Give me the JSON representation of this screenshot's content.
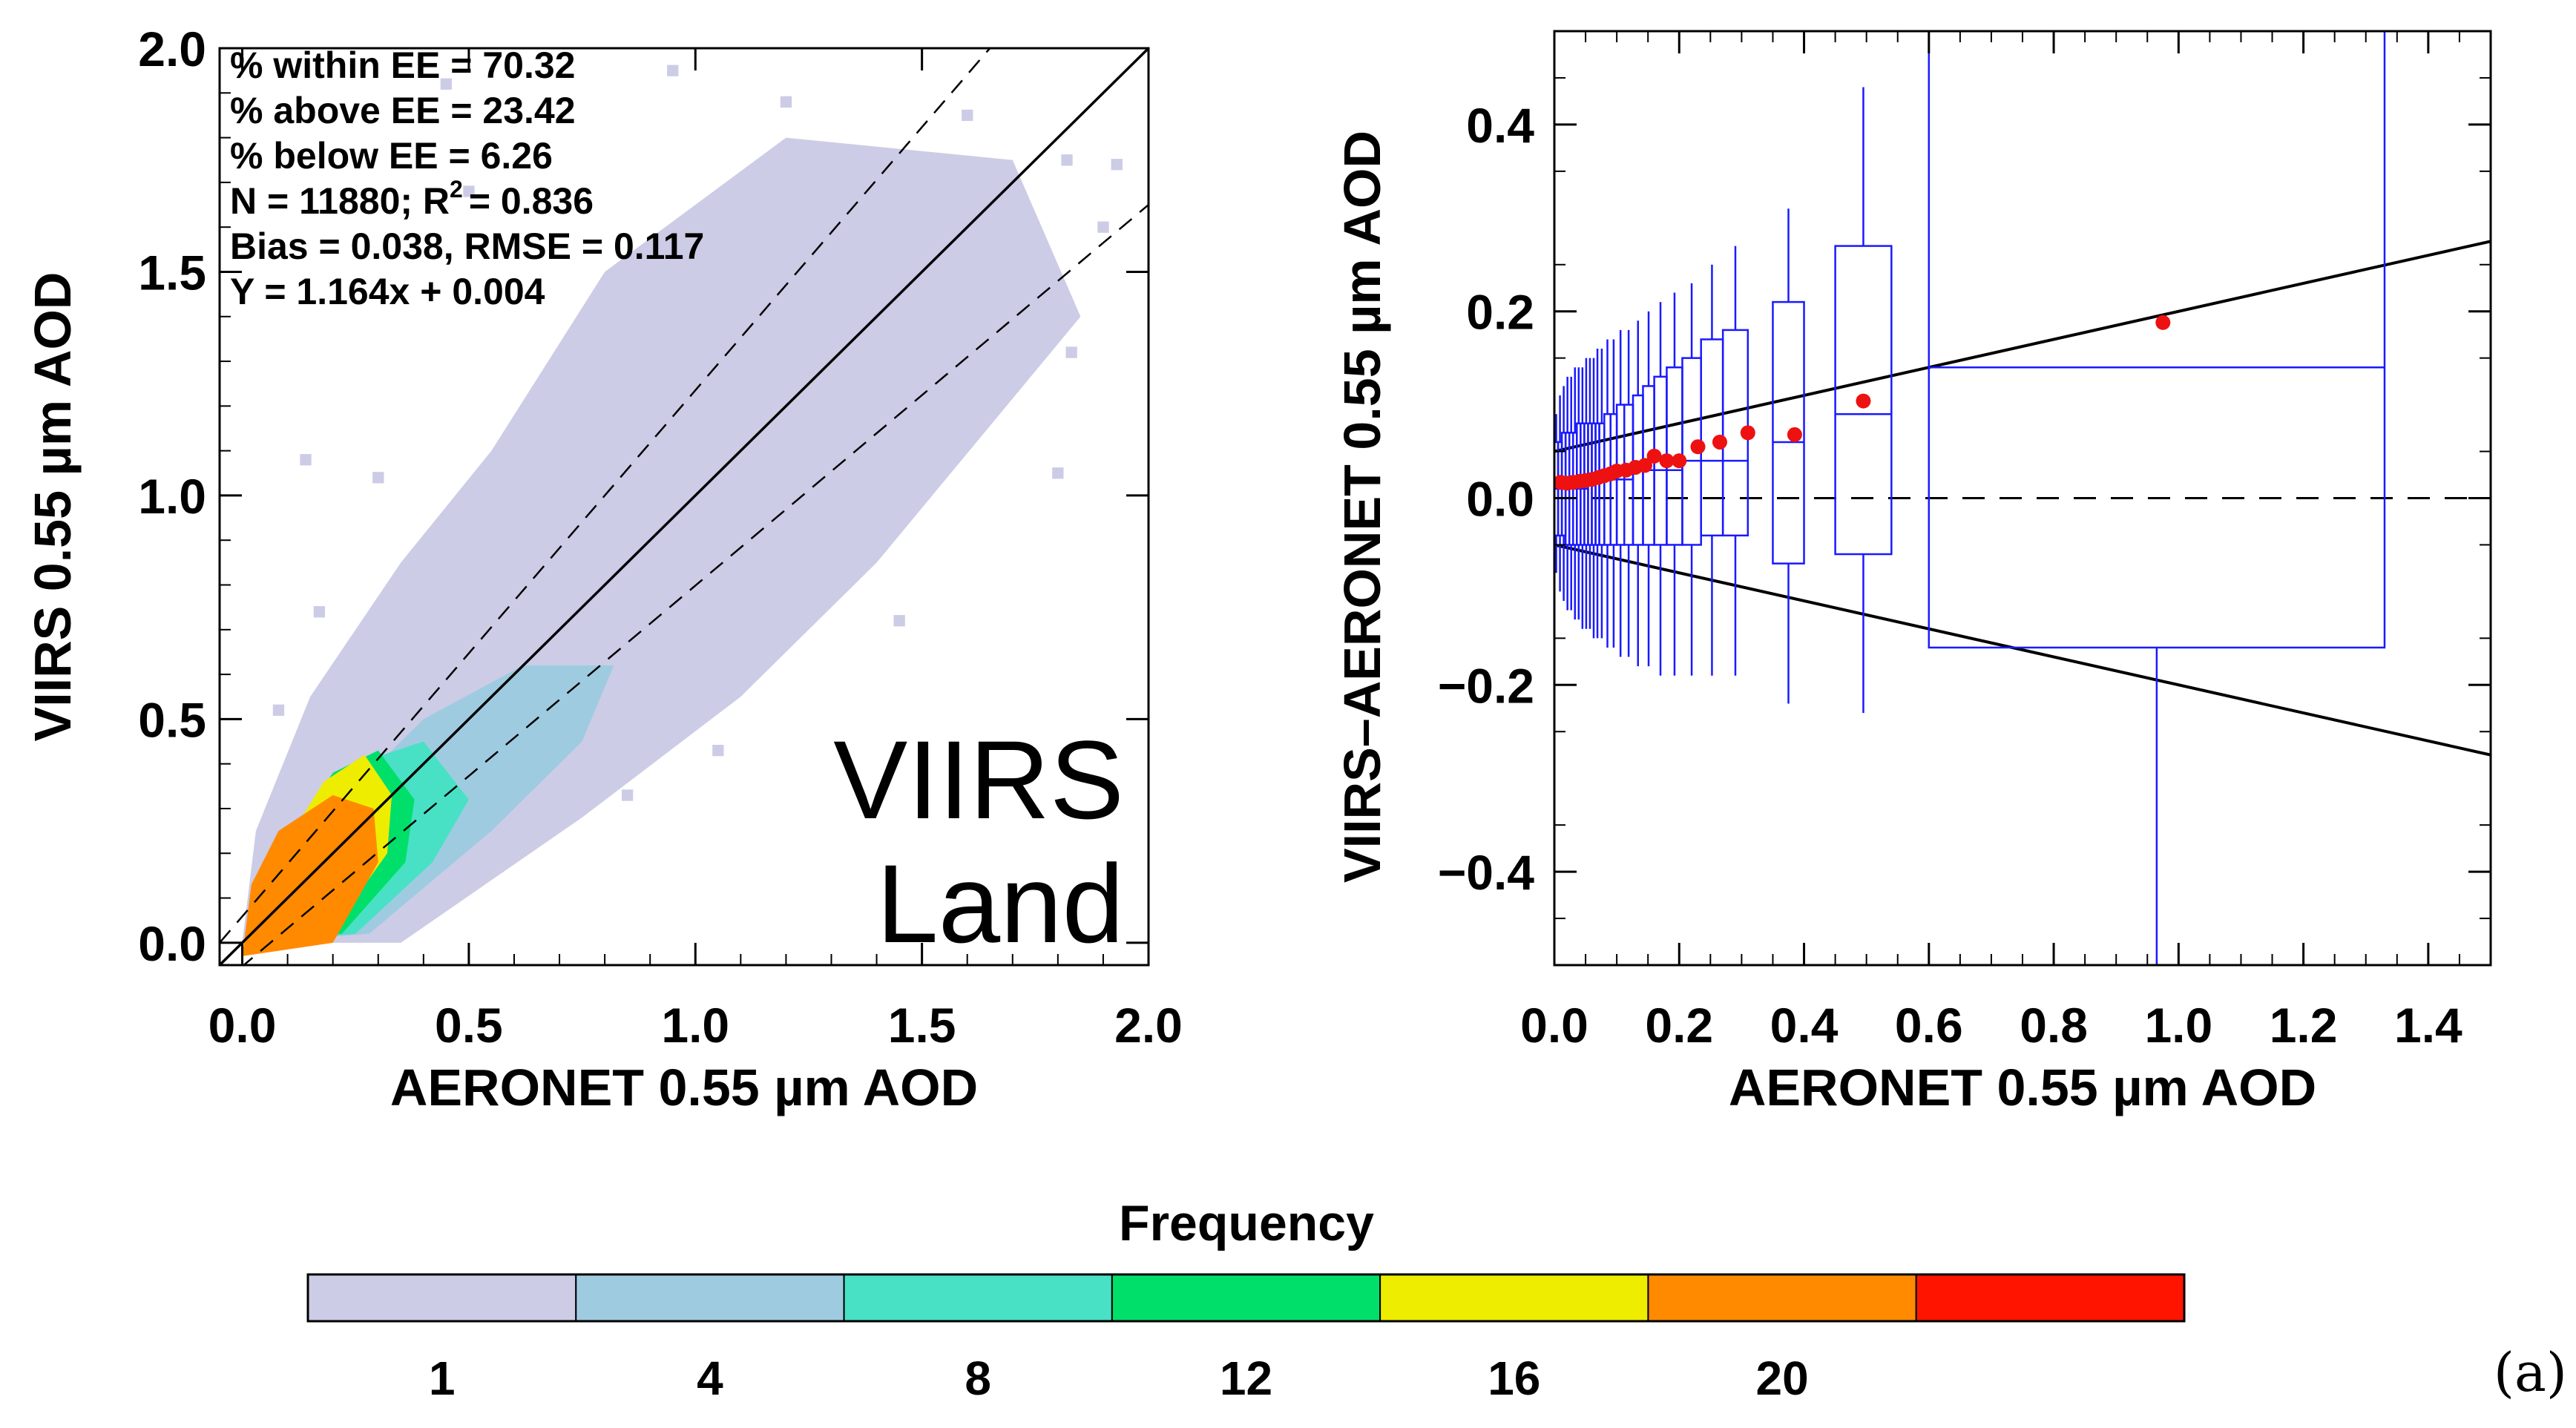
{
  "chart_data": [
    {
      "type": "heatmap",
      "xlabel": "AERONET 0.55 µm AOD",
      "ylabel": "VIIRS 0.55 µm AOD",
      "xlim": [
        -0.05,
        2.0
      ],
      "ylim": [
        -0.05,
        2.0
      ],
      "xticks": [
        "0.0",
        "0.5",
        "1.0",
        "1.5",
        "2.0"
      ],
      "yticks": [
        "0.0",
        "0.5",
        "1.0",
        "1.5",
        "2.0"
      ],
      "stats": [
        "% within EE =  70.32",
        "% above EE =  23.42",
        "% below EE =   6.26",
        "N =  11880; R",
        "Bias =  0.038, RMSE =  0.117",
        "Y  =  1.164x +  0.004"
      ],
      "stats_r2_tail": "=  0.836",
      "stats_r2_sup": "2",
      "annotation": [
        "VIIRS",
        "Land"
      ],
      "one_to_one": {
        "x": [
          -0.05,
          2.0
        ],
        "y": [
          -0.05,
          2.0
        ]
      },
      "ee_upper": {
        "x": [
          -0.05,
          1.65
        ],
        "y": [
          0.0,
          2.0
        ]
      },
      "ee_lower": {
        "x": [
          -0.05,
          2.0
        ],
        "y": [
          -0.0954,
          1.65
        ]
      },
      "density_regions": [
        {
          "level": 1,
          "poly": [
            [
              0.0,
              0.0
            ],
            [
              0.35,
              0.0
            ],
            [
              0.75,
              0.28
            ],
            [
              1.1,
              0.55
            ],
            [
              1.4,
              0.85
            ],
            [
              1.85,
              1.4
            ],
            [
              1.7,
              1.75
            ],
            [
              1.2,
              1.8
            ],
            [
              0.8,
              1.5
            ],
            [
              0.55,
              1.1
            ],
            [
              0.35,
              0.85
            ],
            [
              0.15,
              0.55
            ],
            [
              0.03,
              0.25
            ]
          ]
        },
        {
          "level": 4,
          "poly": [
            [
              0.02,
              0.0
            ],
            [
              0.28,
              0.02
            ],
            [
              0.55,
              0.25
            ],
            [
              0.75,
              0.45
            ],
            [
              0.82,
              0.62
            ],
            [
              0.62,
              0.62
            ],
            [
              0.4,
              0.5
            ],
            [
              0.2,
              0.3
            ],
            [
              0.05,
              0.15
            ]
          ]
        },
        {
          "level": 8,
          "poly": [
            [
              0.02,
              0.0
            ],
            [
              0.25,
              0.02
            ],
            [
              0.42,
              0.18
            ],
            [
              0.5,
              0.32
            ],
            [
              0.4,
              0.45
            ],
            [
              0.25,
              0.4
            ],
            [
              0.1,
              0.22
            ],
            [
              0.03,
              0.1
            ]
          ]
        },
        {
          "level": 12,
          "poly": [
            [
              0.02,
              0.0
            ],
            [
              0.22,
              0.02
            ],
            [
              0.36,
              0.18
            ],
            [
              0.38,
              0.32
            ],
            [
              0.3,
              0.43
            ],
            [
              0.2,
              0.38
            ],
            [
              0.08,
              0.2
            ],
            [
              0.02,
              0.08
            ]
          ]
        },
        {
          "level": 16,
          "poly": [
            [
              0.02,
              0.0
            ],
            [
              0.2,
              0.03
            ],
            [
              0.32,
              0.2
            ],
            [
              0.33,
              0.33
            ],
            [
              0.27,
              0.42
            ],
            [
              0.18,
              0.36
            ],
            [
              0.07,
              0.18
            ]
          ]
        },
        {
          "level": 20,
          "poly": [
            [
              0.0,
              -0.03
            ],
            [
              0.2,
              0.0
            ],
            [
              0.3,
              0.18
            ],
            [
              0.29,
              0.3
            ],
            [
              0.2,
              0.33
            ],
            [
              0.08,
              0.25
            ],
            [
              0.02,
              0.13
            ]
          ]
        }
      ],
      "isolated_cells": [
        [
          1.93,
          1.74
        ],
        [
          1.72,
          1.52
        ],
        [
          1.58,
          1.42
        ],
        [
          1.83,
          1.32
        ],
        [
          1.8,
          1.05
        ],
        [
          1.2,
          1.88
        ],
        [
          1.35,
          1.65
        ],
        [
          0.95,
          1.95
        ],
        [
          1.0,
          1.55
        ],
        [
          1.25,
          0.76
        ],
        [
          1.45,
          0.72
        ],
        [
          0.95,
          0.48
        ],
        [
          1.05,
          0.82
        ],
        [
          0.97,
          0.9
        ],
        [
          0.14,
          1.08
        ],
        [
          0.08,
          0.52
        ],
        [
          0.17,
          0.74
        ],
        [
          1.28,
          1.26
        ],
        [
          0.85,
          0.33
        ],
        [
          1.6,
          1.85
        ],
        [
          1.48,
          1.12
        ],
        [
          1.12,
          1.35
        ],
        [
          0.72,
          1.25
        ],
        [
          0.6,
          1.02
        ],
        [
          0.5,
          1.68
        ],
        [
          0.45,
          1.92
        ],
        [
          0.3,
          1.04
        ],
        [
          0.4,
          0.88
        ],
        [
          1.37,
          0.92
        ],
        [
          1.62,
          1.17
        ],
        [
          1.9,
          1.6
        ],
        [
          1.15,
          0.63
        ],
        [
          1.05,
          0.43
        ],
        [
          0.95,
          0.67
        ],
        [
          0.68,
          0.75
        ],
        [
          1.82,
          1.75
        ]
      ]
    },
    {
      "type": "box",
      "xlabel": "AERONET 0.55 µm AOD",
      "ylabel": "VIIRS–AERONET 0.55 µm AOD",
      "xlim": [
        0.0,
        1.5
      ],
      "ylim": [
        -0.5,
        0.5
      ],
      "xticks": [
        "0.0",
        "0.2",
        "0.4",
        "0.6",
        "0.8",
        "1.0",
        "1.2",
        "1.4"
      ],
      "yticks": [
        "−0.4",
        "−0.2",
        "0.0",
        "0.2",
        "0.4"
      ],
      "ee_upper": {
        "x": [
          0.0,
          1.5
        ],
        "y": [
          0.05,
          0.275
        ]
      },
      "ee_lower": {
        "x": [
          0.0,
          1.5
        ],
        "y": [
          -0.05,
          -0.275
        ]
      },
      "zero_line": {
        "x": [
          0.0,
          1.5
        ],
        "y": [
          0.0,
          0.0
        ]
      },
      "boxes": [
        {
          "x0": 0.0,
          "x1": 0.006,
          "w_lo": -0.08,
          "q1": -0.04,
          "median": 0.01,
          "q3": 0.06,
          "w_hi": 0.09
        },
        {
          "x0": 0.006,
          "x1": 0.012,
          "w_lo": -0.1,
          "q1": -0.04,
          "median": 0.01,
          "q3": 0.06,
          "w_hi": 0.11
        },
        {
          "x0": 0.012,
          "x1": 0.018,
          "w_lo": -0.11,
          "q1": -0.04,
          "median": 0.01,
          "q3": 0.07,
          "w_hi": 0.12
        },
        {
          "x0": 0.018,
          "x1": 0.024,
          "w_lo": -0.12,
          "q1": -0.05,
          "median": 0.01,
          "q3": 0.07,
          "w_hi": 0.13
        },
        {
          "x0": 0.024,
          "x1": 0.03,
          "w_lo": -0.12,
          "q1": -0.05,
          "median": 0.01,
          "q3": 0.07,
          "w_hi": 0.13
        },
        {
          "x0": 0.03,
          "x1": 0.036,
          "w_lo": -0.13,
          "q1": -0.05,
          "median": 0.01,
          "q3": 0.07,
          "w_hi": 0.14
        },
        {
          "x0": 0.036,
          "x1": 0.042,
          "w_lo": -0.13,
          "q1": -0.05,
          "median": 0.01,
          "q3": 0.08,
          "w_hi": 0.14
        },
        {
          "x0": 0.042,
          "x1": 0.048,
          "w_lo": -0.14,
          "q1": -0.05,
          "median": 0.01,
          "q3": 0.08,
          "w_hi": 0.14
        },
        {
          "x0": 0.048,
          "x1": 0.054,
          "w_lo": -0.14,
          "q1": -0.05,
          "median": 0.01,
          "q3": 0.08,
          "w_hi": 0.15
        },
        {
          "x0": 0.054,
          "x1": 0.06,
          "w_lo": -0.14,
          "q1": -0.05,
          "median": 0.02,
          "q3": 0.08,
          "w_hi": 0.15
        },
        {
          "x0": 0.06,
          "x1": 0.066,
          "w_lo": -0.15,
          "q1": -0.05,
          "median": 0.02,
          "q3": 0.08,
          "w_hi": 0.15
        },
        {
          "x0": 0.066,
          "x1": 0.072,
          "w_lo": -0.15,
          "q1": -0.05,
          "median": 0.02,
          "q3": 0.08,
          "w_hi": 0.16
        },
        {
          "x0": 0.072,
          "x1": 0.08,
          "w_lo": -0.15,
          "q1": -0.05,
          "median": 0.02,
          "q3": 0.08,
          "w_hi": 0.16
        },
        {
          "x0": 0.08,
          "x1": 0.09,
          "w_lo": -0.16,
          "q1": -0.05,
          "median": 0.02,
          "q3": 0.09,
          "w_hi": 0.17
        },
        {
          "x0": 0.09,
          "x1": 0.1,
          "w_lo": -0.16,
          "q1": -0.05,
          "median": 0.02,
          "q3": 0.09,
          "w_hi": 0.17
        },
        {
          "x0": 0.1,
          "x1": 0.112,
          "w_lo": -0.17,
          "q1": -0.05,
          "median": 0.02,
          "q3": 0.1,
          "w_hi": 0.18
        },
        {
          "x0": 0.112,
          "x1": 0.126,
          "w_lo": -0.17,
          "q1": -0.05,
          "median": 0.02,
          "q3": 0.1,
          "w_hi": 0.18
        },
        {
          "x0": 0.126,
          "x1": 0.142,
          "w_lo": -0.18,
          "q1": -0.05,
          "median": 0.03,
          "q3": 0.11,
          "w_hi": 0.19
        },
        {
          "x0": 0.142,
          "x1": 0.16,
          "w_lo": -0.18,
          "q1": -0.05,
          "median": 0.03,
          "q3": 0.12,
          "w_hi": 0.2
        },
        {
          "x0": 0.16,
          "x1": 0.18,
          "w_lo": -0.19,
          "q1": -0.05,
          "median": 0.03,
          "q3": 0.13,
          "w_hi": 0.21
        },
        {
          "x0": 0.18,
          "x1": 0.205,
          "w_lo": -0.19,
          "q1": -0.05,
          "median": 0.03,
          "q3": 0.14,
          "w_hi": 0.22
        },
        {
          "x0": 0.205,
          "x1": 0.235,
          "w_lo": -0.19,
          "q1": -0.05,
          "median": 0.04,
          "q3": 0.15,
          "w_hi": 0.23
        },
        {
          "x0": 0.235,
          "x1": 0.27,
          "w_lo": -0.19,
          "q1": -0.04,
          "median": 0.04,
          "q3": 0.17,
          "w_hi": 0.25
        },
        {
          "x0": 0.27,
          "x1": 0.31,
          "w_lo": -0.19,
          "q1": -0.04,
          "median": 0.04,
          "q3": 0.18,
          "w_hi": 0.27
        },
        {
          "x0": 0.35,
          "x1": 0.4,
          "w_lo": -0.22,
          "q1": -0.07,
          "median": 0.06,
          "q3": 0.21,
          "w_hi": 0.31
        },
        {
          "x0": 0.45,
          "x1": 0.54,
          "w_lo": -0.23,
          "q1": -0.06,
          "median": 0.09,
          "q3": 0.27,
          "w_hi": 0.44
        },
        {
          "x0": 0.6,
          "x1": 1.33,
          "w_lo": -0.5,
          "q1": -0.16,
          "median": 0.14,
          "q3": 0.5,
          "w_hi": 0.5
        }
      ],
      "means": {
        "x": [
          0.01,
          0.02,
          0.03,
          0.04,
          0.05,
          0.06,
          0.07,
          0.08,
          0.09,
          0.1,
          0.115,
          0.13,
          0.145,
          0.16,
          0.18,
          0.2,
          0.23,
          0.265,
          0.31,
          0.385,
          0.495,
          0.975
        ],
        "y": [
          0.017,
          0.016,
          0.017,
          0.018,
          0.019,
          0.02,
          0.022,
          0.024,
          0.026,
          0.029,
          0.03,
          0.033,
          0.035,
          0.045,
          0.04,
          0.04,
          0.055,
          0.06,
          0.07,
          0.068,
          0.104,
          0.188
        ]
      }
    }
  ],
  "colorbar": {
    "title": "Frequency",
    "colors": [
      "#cccce6",
      "#9fcbe0",
      "#49e1c5",
      "#00df6a",
      "#eeed00",
      "#ff8a00",
      "#ff1400"
    ],
    "tick_labels": [
      "1",
      "4",
      "8",
      "12",
      "16",
      "20"
    ]
  },
  "panel_label": "(a)",
  "colors": {
    "box": "#1a1aff",
    "mean": "#ee1111",
    "line": "#000000"
  }
}
